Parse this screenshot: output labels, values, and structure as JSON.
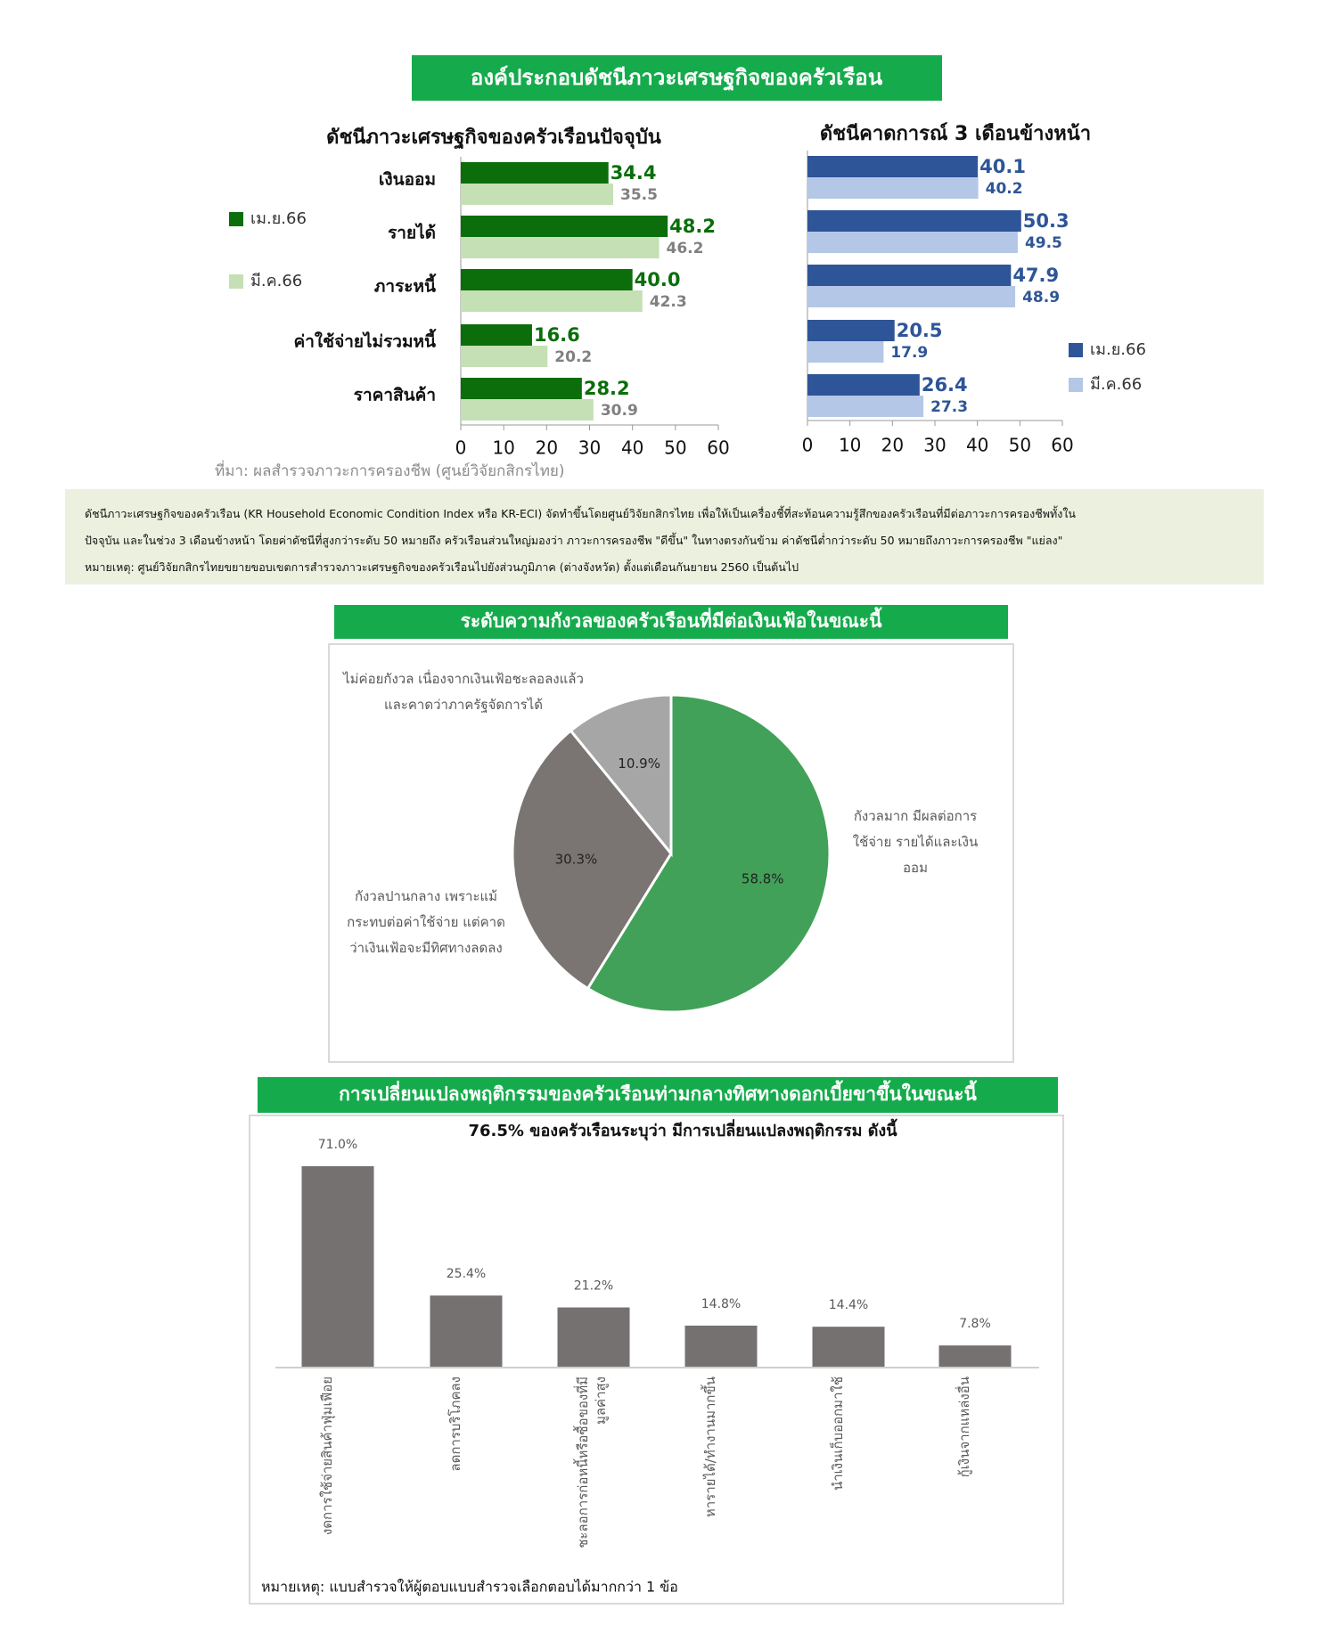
{
  "header": "องค์ประกอบดัชนีภาวะเศรษฐกิจของครัวเรือน",
  "source": "ที่มา: ผลสำรวจภาวะการครองชีพ (ศูนย์วิจัยกสิกรไทย)",
  "note": [
    "ดัชนีภาวะเศรษฐกิจของครัวเรือน (KR Household Economic Condition Index หรือ KR-ECI) จัดทำขึ้นโดยศูนย์วิจัยกสิกรไทย เพื่อให้เป็นเครื่องชี้ที่สะท้อนความรู้สึกของครัวเรือนที่มีต่อภาวะการครองชีพทั้งใน",
    "ปัจจุบัน และในช่วง 3 เดือนข้างหน้า โดยค่าดัชนีที่สูงกว่าระดับ 50 หมายถึง ครัวเรือนส่วนใหญ่มองว่า ภาวะการครองชีพ \"ดีขึ้น\" ในทางตรงกันข้าม ค่าดัชนีต่ำกว่าระดับ 50  หมายถึงภาวะการครองชีพ \"แย่ลง\"",
    "หมายเหตุ: ศูนย์วิจัยกสิกรไทยขยายขอบเขตการสำรวจภาวะเศรษฐกิจของครัวเรือนไปยังส่วนภูมิภาค (ต่างจังหวัด) ตั้งแต่เดือนกันยายน 2560 เป็นต้นไป"
  ],
  "chart_data": [
    {
      "type": "hbar",
      "title": "ดัชนีภาวะเศรษฐกิจของครัวเรือนปัจจุบัน",
      "categories": [
        "เงินออม",
        "รายได้",
        "ภาระหนี้",
        "ค่าใช้จ่ายไม่รวมหนี้",
        "ราคาสินค้า"
      ],
      "series": [
        {
          "name": "เม.ย.66",
          "color": "#0b6e0b",
          "label_color": "#0b6e0b",
          "values": [
            34.4,
            48.2,
            40.0,
            16.6,
            28.2
          ],
          "value_labels": [
            "34.4",
            "48.2",
            "40.0",
            "16.6",
            "28.2"
          ]
        },
        {
          "name": "มี.ค.66",
          "color": "#c5e0b4",
          "label_color": "#808080",
          "values": [
            35.5,
            46.2,
            42.3,
            20.2,
            30.9
          ],
          "value_labels": [
            "35.5",
            "46.2",
            "42.3",
            "20.2",
            "30.9"
          ]
        }
      ],
      "xlim": [
        0,
        60
      ],
      "xticks": [
        0,
        10,
        20,
        30,
        40,
        50,
        60
      ],
      "legend": "left"
    },
    {
      "type": "hbar",
      "title": "ดัชนีคาดการณ์ 3 เดือนข้างหน้า",
      "series": [
        {
          "name": "เม.ย.66",
          "color": "#2e5597",
          "label_color": "#2e5597",
          "values": [
            40.1,
            50.3,
            47.9,
            20.5,
            26.4
          ],
          "value_labels": [
            "40.1",
            "50.3",
            "47.9",
            "20.5",
            "26.4"
          ]
        },
        {
          "name": "มี.ค.66",
          "color": "#b4c7e7",
          "label_color": "#2e5597",
          "values": [
            40.2,
            49.5,
            48.9,
            17.9,
            27.3
          ],
          "value_labels": [
            "40.2",
            "49.5",
            "48.9",
            "17.9",
            "27.3"
          ]
        }
      ],
      "xlim": [
        0,
        60
      ],
      "xticks": [
        0,
        10,
        20,
        30,
        40,
        50,
        60
      ],
      "legend": "right"
    },
    {
      "type": "pie",
      "title": "ระดับความกังวลของครัวเรือนที่มีต่อเงินเฟ้อในขณะนี้",
      "categories": [
        "กังวลมาก มีผลต่อการใช้จ่าย รายได้และเงินออม",
        "กังวลปานกลาง เพราะแม้กระทบต่อค่าใช้จ่าย แต่คาดว่าเงินเฟ้อจะมีทิศทางลดลง",
        "ไม่ค่อยกังวล เนื่องจากเงินเฟ้อชะลอลงแล้ว และคาดว่าภาครัฐจัดการได้"
      ],
      "values": [
        58.8,
        30.3,
        10.9
      ],
      "value_labels": [
        "58.8%",
        "30.3%",
        "10.9%"
      ],
      "colors": [
        "#41a158",
        "#7a7472",
        "#a6a6a6"
      ]
    },
    {
      "type": "bar",
      "title": "การเปลี่ยนแปลงพฤติกรรมของครัวเรือนท่ามกลางทิศทางดอกเบี้ยขาขึ้นในขณะนี้",
      "subtitle": "76.5% ของครัวเรือนระบุว่า มีการเปลี่ยนแปลงพฤติกรรม ดังนี้",
      "note": "หมายเหตุ: แบบสำรวจให้ผู้ตอบแบบสำรวจเลือกตอบได้มากกว่า 1 ข้อ",
      "categories": [
        "งดการใช้จ่ายสินค้าฟุ่มเฟือย",
        "ลดการบริโภคลง",
        "ชะลอการก่อหนี้หรือซื้อของที่มีมูลค่าสูง",
        "หารายได้/ทำงานมากขึ้น",
        "นำเงินเก็บออกมาใช้",
        "กู้เงินจากแหล่งอื่น"
      ],
      "values": [
        71.0,
        25.4,
        21.2,
        14.8,
        14.4,
        7.8
      ],
      "value_labels": [
        "71.0%",
        "25.4%",
        "21.2%",
        "14.8%",
        "14.4%",
        "7.8%"
      ],
      "color": "#767171"
    }
  ]
}
